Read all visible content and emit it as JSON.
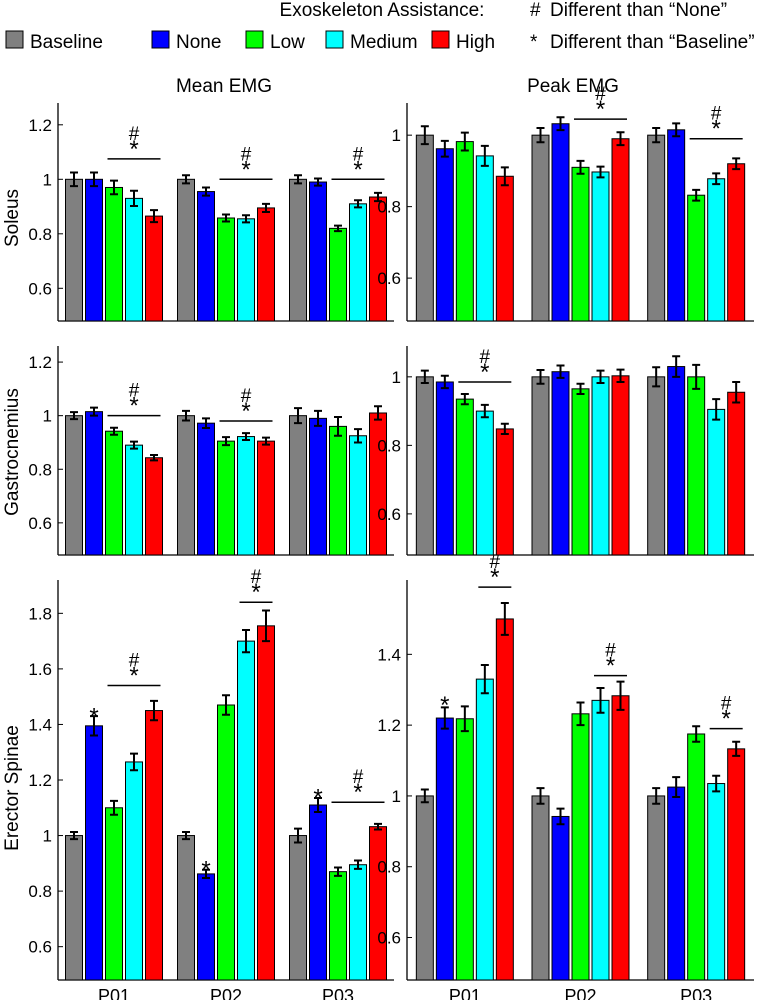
{
  "legend": {
    "title": "Exoskeleton Assistance:",
    "items": [
      {
        "label": "Baseline",
        "color": "#808080"
      },
      {
        "label": "None",
        "color": "#0000ff"
      },
      {
        "label": "Low",
        "color": "#00ff00"
      },
      {
        "label": "Medium",
        "color": "#00ffff"
      },
      {
        "label": "High",
        "color": "#ff0000"
      }
    ],
    "notes": [
      {
        "symbol": "#",
        "text": "Different than “None”"
      },
      {
        "symbol": "*",
        "text": "Different than “Baseline”"
      }
    ]
  },
  "chart_data": [
    {
      "type": "bar",
      "row": "Soleus",
      "column": "Mean EMG",
      "title": "Mean EMG",
      "ylabel": "Soleus",
      "ylim": [
        0.48,
        1.28
      ],
      "yticks": [
        "0.6",
        "0.8",
        "1",
        "1.2"
      ],
      "categories": [
        "P01",
        "P02",
        "P03"
      ],
      "series": [
        {
          "name": "Baseline",
          "values": [
            1.0,
            1.0,
            1.0
          ],
          "errors": [
            0.025,
            0.015,
            0.015
          ]
        },
        {
          "name": "None",
          "values": [
            1.0,
            0.955,
            0.99
          ],
          "errors": [
            0.025,
            0.015,
            0.013
          ]
        },
        {
          "name": "Low",
          "values": [
            0.97,
            0.858,
            0.82
          ],
          "errors": [
            0.025,
            0.013,
            0.01
          ]
        },
        {
          "name": "Medium",
          "values": [
            0.93,
            0.855,
            0.91
          ],
          "errors": [
            0.028,
            0.013,
            0.013
          ]
        },
        {
          "name": "High",
          "values": [
            0.865,
            0.895,
            0.935
          ],
          "errors": [
            0.022,
            0.015,
            0.015
          ]
        }
      ],
      "annotations": [
        {
          "category": "P01",
          "from": "Low",
          "to": "High",
          "y": 1.075,
          "marks": [
            "#",
            "*"
          ]
        },
        {
          "category": "P02",
          "from": "Low",
          "to": "High",
          "y": 1.0,
          "marks": [
            "#",
            "*"
          ]
        },
        {
          "category": "P03",
          "from": "Low",
          "to": "High",
          "y": 1.0,
          "marks": [
            "#",
            "*"
          ]
        }
      ]
    },
    {
      "type": "bar",
      "row": "Soleus",
      "column": "Peak EMG",
      "title": "Peak EMG",
      "ylabel": "",
      "ylabel_hidden": true,
      "ylim": [
        0.48,
        1.09
      ],
      "yticks": [
        "0.6",
        "0.8",
        "1"
      ],
      "categories": [
        "P01",
        "P02",
        "P03"
      ],
      "series": [
        {
          "name": "Baseline",
          "values": [
            1.0,
            1.0,
            1.0
          ],
          "errors": [
            0.025,
            0.02,
            0.02
          ]
        },
        {
          "name": "None",
          "values": [
            0.962,
            1.032,
            1.015
          ],
          "errors": [
            0.022,
            0.018,
            0.018
          ]
        },
        {
          "name": "Low",
          "values": [
            0.982,
            0.91,
            0.832
          ],
          "errors": [
            0.025,
            0.018,
            0.015
          ]
        },
        {
          "name": "Medium",
          "values": [
            0.942,
            0.897,
            0.878
          ],
          "errors": [
            0.028,
            0.015,
            0.015
          ]
        },
        {
          "name": "High",
          "values": [
            0.885,
            0.99,
            0.92
          ],
          "errors": [
            0.025,
            0.018,
            0.015
          ]
        }
      ],
      "annotations": [
        {
          "category": "P02",
          "from": "Low",
          "to": "High",
          "y": 1.045,
          "marks": [
            "#",
            "*"
          ]
        },
        {
          "category": "P03",
          "from": "Low",
          "to": "High",
          "y": 0.99,
          "marks": [
            "#",
            "*"
          ]
        }
      ]
    },
    {
      "type": "bar",
      "row": "Gastrocnemius",
      "column": "Mean EMG",
      "title": "",
      "ylabel": "Gastrocnemius",
      "ylim": [
        0.48,
        1.26
      ],
      "yticks": [
        "0.6",
        "0.8",
        "1",
        "1.2"
      ],
      "categories": [
        "P01",
        "P02",
        "P03"
      ],
      "series": [
        {
          "name": "Baseline",
          "values": [
            1.0,
            1.0,
            1.0
          ],
          "errors": [
            0.013,
            0.018,
            0.028
          ]
        },
        {
          "name": "None",
          "values": [
            1.015,
            0.972,
            0.99
          ],
          "errors": [
            0.015,
            0.018,
            0.028
          ]
        },
        {
          "name": "Low",
          "values": [
            0.942,
            0.905,
            0.96
          ],
          "errors": [
            0.013,
            0.015,
            0.035
          ]
        },
        {
          "name": "Medium",
          "values": [
            0.89,
            0.922,
            0.925
          ],
          "errors": [
            0.013,
            0.013,
            0.025
          ]
        },
        {
          "name": "High",
          "values": [
            0.843,
            0.905,
            1.01
          ],
          "errors": [
            0.01,
            0.013,
            0.025
          ]
        }
      ],
      "annotations": [
        {
          "category": "P01",
          "from": "Low",
          "to": "High",
          "y": 1.0,
          "marks": [
            "#",
            "*"
          ]
        },
        {
          "category": "P02",
          "from": "Low",
          "to": "High",
          "y": 0.98,
          "marks": [
            "#",
            "*"
          ]
        }
      ]
    },
    {
      "type": "bar",
      "row": "Gastrocnemius",
      "column": "Peak EMG",
      "title": "",
      "ylabel": "",
      "ylim": [
        0.48,
        1.09
      ],
      "yticks": [
        "0.6",
        "0.8",
        "1"
      ],
      "categories": [
        "P01",
        "P02",
        "P03"
      ],
      "series": [
        {
          "name": "Baseline",
          "values": [
            1.0,
            1.0,
            1.0
          ],
          "errors": [
            0.018,
            0.02,
            0.028
          ]
        },
        {
          "name": "None",
          "values": [
            0.985,
            1.015,
            1.03
          ],
          "errors": [
            0.018,
            0.018,
            0.03
          ]
        },
        {
          "name": "Low",
          "values": [
            0.935,
            0.965,
            1.0
          ],
          "errors": [
            0.015,
            0.015,
            0.035
          ]
        },
        {
          "name": "Medium",
          "values": [
            0.9,
            1.0,
            0.905
          ],
          "errors": [
            0.018,
            0.018,
            0.03
          ]
        },
        {
          "name": "High",
          "values": [
            0.848,
            1.003,
            0.955
          ],
          "errors": [
            0.015,
            0.018,
            0.03
          ]
        }
      ],
      "annotations": [
        {
          "category": "P01",
          "from": "Low",
          "to": "High",
          "y": 0.985,
          "marks": [
            "#",
            "*"
          ]
        }
      ]
    },
    {
      "type": "bar",
      "row": "Erector Spinae",
      "column": "Mean EMG",
      "title": "",
      "ylabel": "Erector Spinae",
      "ylim": [
        0.48,
        1.92
      ],
      "yticks": [
        "0.6",
        "0.8",
        "1",
        "1.2",
        "1.4",
        "1.6",
        "1.8"
      ],
      "categories": [
        "P01",
        "P02",
        "P03"
      ],
      "series": [
        {
          "name": "Baseline",
          "values": [
            1.0,
            1.0,
            1.0
          ],
          "errors": [
            0.013,
            0.013,
            0.025
          ]
        },
        {
          "name": "None",
          "values": [
            1.395,
            0.862,
            1.11
          ],
          "errors": [
            0.035,
            0.015,
            0.025
          ]
        },
        {
          "name": "Low",
          "values": [
            1.1,
            1.47,
            0.87
          ],
          "errors": [
            0.025,
            0.035,
            0.015
          ]
        },
        {
          "name": "Medium",
          "values": [
            1.265,
            1.7,
            0.895
          ],
          "errors": [
            0.03,
            0.04,
            0.015
          ]
        },
        {
          "name": "High",
          "values": [
            1.45,
            1.755,
            1.032
          ],
          "errors": [
            0.035,
            0.055,
            0.01
          ]
        }
      ],
      "annotations": [
        {
          "category": "P01",
          "from": "Low",
          "to": "High",
          "y": 1.54,
          "marks": [
            "#",
            "*"
          ]
        },
        {
          "category": "P02",
          "from": "Medium",
          "to": "High",
          "y": 1.84,
          "marks": [
            "#",
            "*"
          ]
        },
        {
          "category": "P03",
          "from": "Low",
          "to": "High",
          "y": 1.12,
          "marks": [
            "#",
            "*"
          ]
        },
        {
          "category": "P01",
          "series": "None",
          "y": 1.435,
          "marks": [
            "*"
          ]
        },
        {
          "category": "P02",
          "series": "None",
          "y": 0.885,
          "marks": [
            "*"
          ]
        },
        {
          "category": "P03",
          "series": "None",
          "y": 1.145,
          "marks": [
            "*"
          ]
        }
      ]
    },
    {
      "type": "bar",
      "row": "Erector Spinae",
      "column": "Peak EMG",
      "title": "",
      "ylabel": "",
      "ylim": [
        0.48,
        1.61
      ],
      "yticks": [
        "0.6",
        "0.8",
        "1",
        "1.2",
        "1.4"
      ],
      "categories": [
        "P01",
        "P02",
        "P03"
      ],
      "series": [
        {
          "name": "Baseline",
          "values": [
            1.0,
            1.0,
            1.0
          ],
          "errors": [
            0.018,
            0.022,
            0.022
          ]
        },
        {
          "name": "None",
          "values": [
            1.22,
            0.942,
            1.025
          ],
          "errors": [
            0.03,
            0.022,
            0.028
          ]
        },
        {
          "name": "Low",
          "values": [
            1.218,
            1.232,
            1.175
          ],
          "errors": [
            0.035,
            0.032,
            0.022
          ]
        },
        {
          "name": "Medium",
          "values": [
            1.33,
            1.27,
            1.035
          ],
          "errors": [
            0.04,
            0.035,
            0.022
          ]
        },
        {
          "name": "High",
          "values": [
            1.5,
            1.283,
            1.133
          ],
          "errors": [
            0.045,
            0.04,
            0.02
          ]
        }
      ],
      "annotations": [
        {
          "category": "P01",
          "from": "Medium",
          "to": "High",
          "y": 1.59,
          "marks": [
            "#",
            "*"
          ]
        },
        {
          "category": "P02",
          "from": "Medium",
          "to": "High",
          "y": 1.34,
          "marks": [
            "#",
            "*"
          ]
        },
        {
          "category": "P03",
          "from": "Medium",
          "to": "High",
          "y": 1.19,
          "marks": [
            "#",
            "*"
          ]
        },
        {
          "category": "P01",
          "series": "None",
          "y": 1.262,
          "marks": [
            "*"
          ]
        }
      ]
    }
  ]
}
